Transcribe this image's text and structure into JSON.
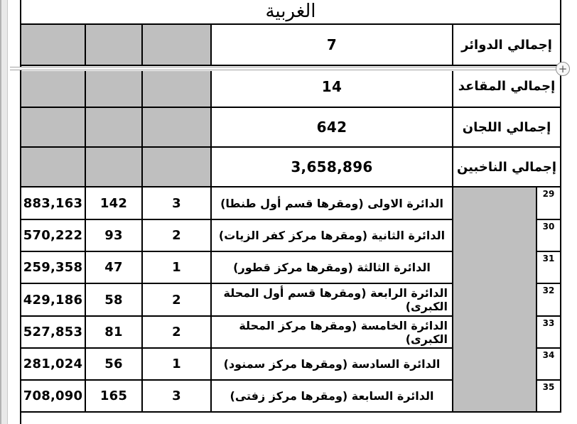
{
  "title": "الغربية",
  "summary": [
    {
      "label": "إجمالي الدوائر",
      "value": "7"
    },
    {
      "label": "إجمالي المقاعد",
      "value": "14"
    },
    {
      "label": "إجمالي اللجان",
      "value": "642"
    },
    {
      "label": "إجمالي الناخبين",
      "value": "3,658,896"
    }
  ],
  "districts": [
    {
      "row_no": "29",
      "name": "الدائرة الاولى (ومقرها قسم أول طنطا)",
      "seats": "3",
      "committees": "142",
      "voters": "883,163"
    },
    {
      "row_no": "30",
      "name": "الدائرة الثانية (ومقرها مركز كفر الزيات)",
      "seats": "2",
      "committees": "93",
      "voters": "570,222"
    },
    {
      "row_no": "31",
      "name": "الدائرة الثالثة (ومقرها مركز قطور)",
      "seats": "1",
      "committees": "47",
      "voters": "259,358"
    },
    {
      "row_no": "32",
      "name": "الدائرة الرابعة (ومقرها قسم أول المحلة الكبرى)",
      "seats": "2",
      "committees": "58",
      "voters": "429,186"
    },
    {
      "row_no": "33",
      "name": "الدائرة الخامسة (ومقرها مركز المحلة الكبرى)",
      "seats": "2",
      "committees": "81",
      "voters": "527,853"
    },
    {
      "row_no": "34",
      "name": "الدائرة السادسة (ومقرها مركز سمنود)",
      "seats": "1",
      "committees": "56",
      "voters": "281,024"
    },
    {
      "row_no": "35",
      "name": "الدائرة السابعة (ومقرها مركز زفتى)",
      "seats": "3",
      "committees": "165",
      "voters": "708,090"
    }
  ],
  "insert_row_control": {
    "symbol": "+"
  },
  "colors": {
    "cell_shading": "#bfbfbf",
    "table_border": "#000000",
    "insert_indicator": "#a3a3a3"
  }
}
